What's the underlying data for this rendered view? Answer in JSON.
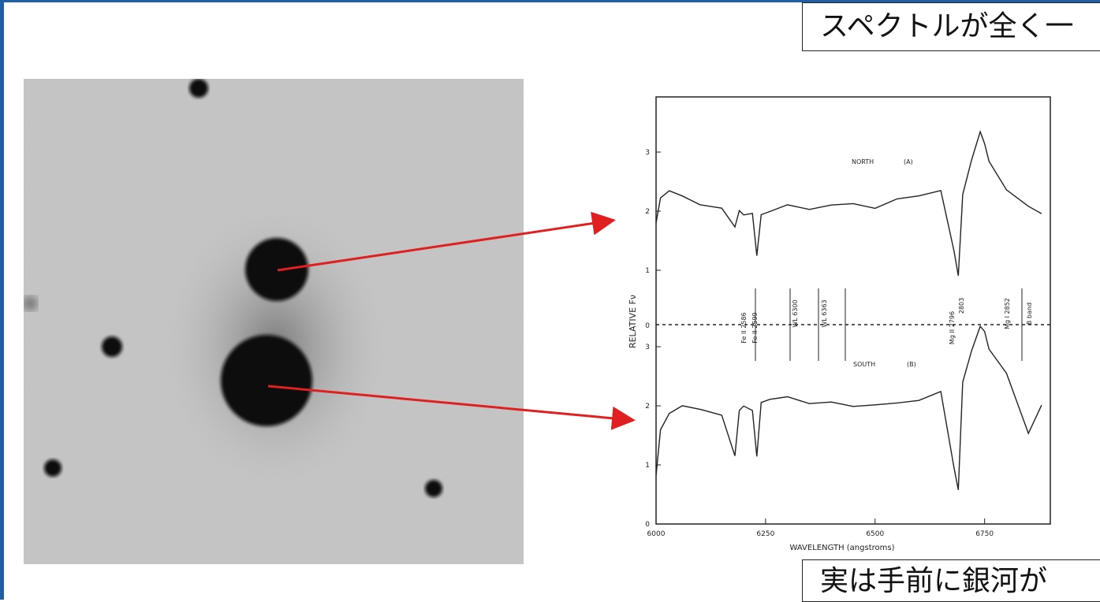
{
  "callouts": {
    "top_text": "スペクトルが全く一",
    "bottom_text": "実は手前に銀河が"
  },
  "spectrum": {
    "ylabel": "RELATIVE Fν",
    "xlabel": "WAVELENGTH (angstroms)",
    "north_label": "NORTH",
    "north_tag": "(A)",
    "south_label": "SOUTH",
    "south_tag": "(B)",
    "x_ticks": [
      "6000",
      "6250",
      "6500",
      "6750"
    ],
    "north_y_ticks": [
      "3",
      "2",
      "1"
    ],
    "south_y_ticks": [
      "3",
      "2",
      "1",
      "0"
    ],
    "divider_tick": "0",
    "line_labels": [
      "Fe II 2586",
      "Fe II 2599",
      "WL 6300",
      "WL 6363",
      "Mg II 2796",
      "2803",
      "Mg I 2852",
      "B band"
    ]
  },
  "colors": {
    "arrow": "#e02020",
    "frame": "#1f5fa8"
  },
  "chart_data": {
    "type": "line",
    "xlabel": "WAVELENGTH (angstroms)",
    "ylabel": "RELATIVE Fν",
    "xlim": [
      6000,
      6900
    ],
    "x_ticks": [
      6000,
      6250,
      6500,
      6750
    ],
    "panels": [
      {
        "name": "NORTH (A)",
        "ylim": [
          0,
          3.6
        ]
      },
      {
        "name": "SOUTH (B)",
        "ylim": [
          0,
          3.6
        ]
      }
    ],
    "series": [
      {
        "name": "NORTH (A)",
        "x": [
          6000,
          6010,
          6030,
          6060,
          6100,
          6150,
          6180,
          6190,
          6200,
          6220,
          6230,
          6240,
          6260,
          6300,
          6350,
          6400,
          6450,
          6500,
          6550,
          6600,
          6650,
          6680,
          6690,
          6700,
          6720,
          6740,
          6750,
          6760,
          6800,
          6850,
          6880
        ],
        "y": [
          1.8,
          2.2,
          2.3,
          2.2,
          2.05,
          2.0,
          1.7,
          2.0,
          1.95,
          2.0,
          1.3,
          2.0,
          2.05,
          2.15,
          2.05,
          2.1,
          2.1,
          2.0,
          2.15,
          2.2,
          2.3,
          1.3,
          0.9,
          2.3,
          2.9,
          3.4,
          3.2,
          2.9,
          2.4,
          2.1,
          1.95
        ]
      },
      {
        "name": "SOUTH (B)",
        "x": [
          6000,
          6010,
          6030,
          6060,
          6100,
          6150,
          6180,
          6190,
          6200,
          6220,
          6230,
          6240,
          6260,
          6300,
          6350,
          6400,
          6450,
          6500,
          6550,
          6600,
          6650,
          6680,
          6690,
          6700,
          6720,
          6740,
          6750,
          6760,
          6800,
          6850,
          6880
        ],
        "y": [
          0.8,
          1.6,
          1.9,
          2.05,
          2.0,
          1.9,
          1.2,
          1.95,
          2.0,
          1.9,
          1.1,
          2.0,
          2.05,
          2.1,
          2.0,
          2.05,
          2.0,
          2.05,
          2.1,
          2.15,
          2.3,
          1.0,
          0.6,
          2.4,
          2.9,
          3.3,
          3.2,
          2.9,
          2.5,
          1.5,
          2.0
        ]
      }
    ]
  }
}
